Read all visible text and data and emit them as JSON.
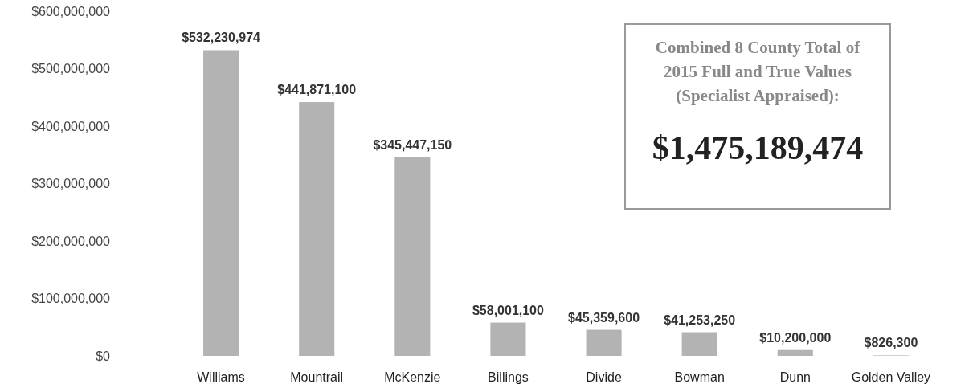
{
  "chart_data": {
    "type": "bar",
    "categories": [
      "Williams",
      "Mountrail",
      "McKenzie",
      "Billings",
      "Divide",
      "Bowman",
      "Dunn",
      "Golden Valley"
    ],
    "values": [
      532230974,
      441871100,
      345447150,
      58001100,
      45359600,
      41253250,
      10200000,
      826300
    ],
    "color": "#b3b3b3",
    "value_labels": [
      "$532,230,974",
      "$441,871,100",
      "$345,447,150",
      "$58,001,100",
      "$45,359,600",
      "$41,253,250",
      "$10,200,000",
      "$826,300"
    ],
    "ylim": [
      0,
      600000000
    ],
    "yticks": [
      {
        "value": 0,
        "label": "$0"
      },
      {
        "value": 100000000,
        "label": "$100,000,000"
      },
      {
        "value": 200000000,
        "label": "$200,000,000"
      },
      {
        "value": 300000000,
        "label": "$300,000,000"
      },
      {
        "value": 400000000,
        "label": "$400,000,000"
      },
      {
        "value": 500000000,
        "label": "$500,000,000"
      },
      {
        "value": 600000000,
        "label": "$600,000,000"
      }
    ],
    "grid": false,
    "annotations": [
      "Combined 8 County Total of 2015 Full and True Values (Specialist Appraised):",
      "$1,475,189,474"
    ]
  }
}
